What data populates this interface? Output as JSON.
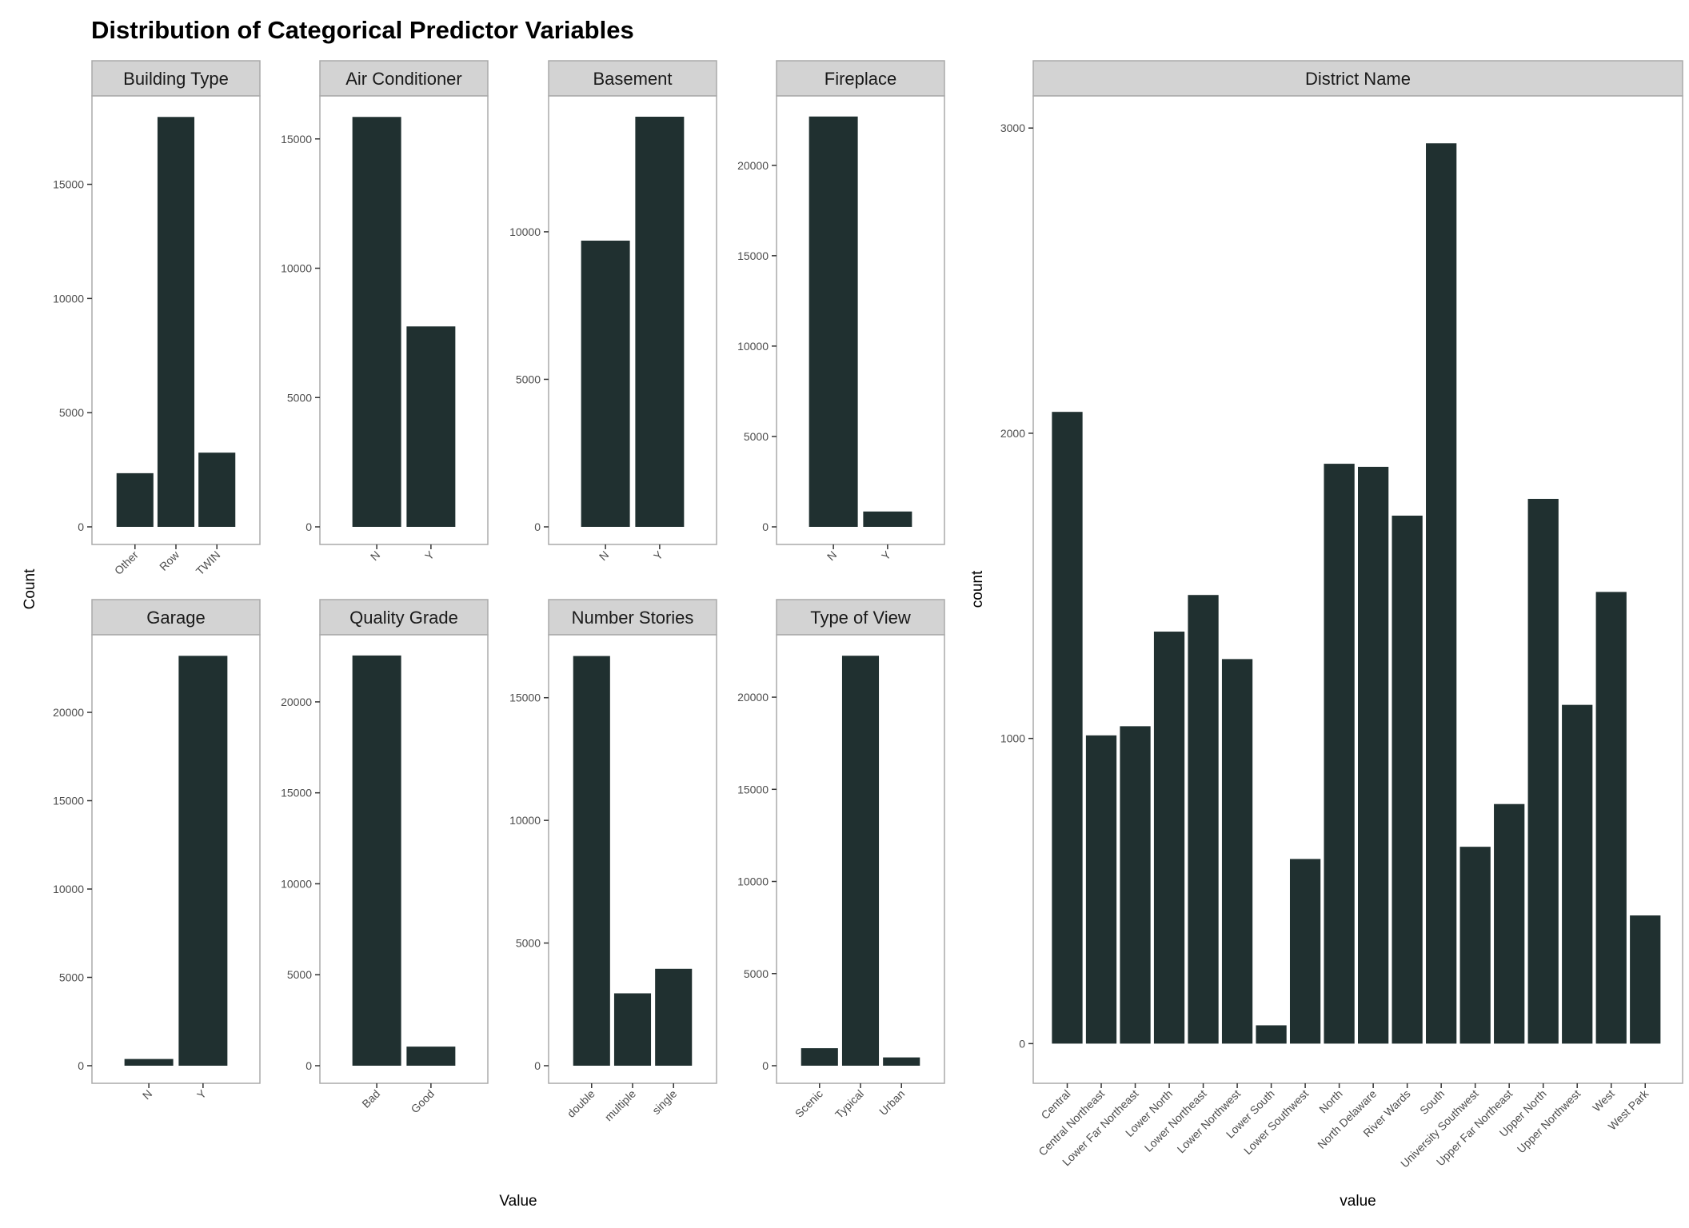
{
  "title": "Distribution of Categorical Predictor Variables",
  "left_panels_xlabel": "Value",
  "left_panels_ylabel": "Count",
  "colors": {
    "bar": "#203030",
    "strip": "#d3d3d3",
    "panel_border": "#aaaaaa"
  },
  "chart_data": [
    {
      "type": "bar",
      "title": "Building Type",
      "categories": [
        "Other",
        "Row",
        "TWIN"
      ],
      "values": [
        2350,
        17950,
        3250
      ],
      "ylim": [
        0,
        18800
      ],
      "yticks": [
        0,
        5000,
        10000,
        15000
      ]
    },
    {
      "type": "bar",
      "title": "Air Conditioner",
      "categories": [
        "N",
        "Y"
      ],
      "values": [
        15850,
        7750
      ],
      "ylim": [
        0,
        16600
      ],
      "yticks": [
        0,
        5000,
        10000,
        15000
      ]
    },
    {
      "type": "bar",
      "title": "Basement",
      "categories": [
        "N",
        "Y"
      ],
      "values": [
        9700,
        13900
      ],
      "ylim": [
        0,
        14550
      ],
      "yticks": [
        0,
        5000,
        10000
      ]
    },
    {
      "type": "bar",
      "title": "Fireplace",
      "categories": [
        "N",
        "Y"
      ],
      "values": [
        22700,
        850
      ],
      "ylim": [
        0,
        23750
      ],
      "yticks": [
        0,
        5000,
        10000,
        15000,
        20000
      ]
    },
    {
      "type": "bar",
      "title": "Garage",
      "categories": [
        "N",
        "Y"
      ],
      "values": [
        380,
        23200
      ],
      "ylim": [
        0,
        24300
      ],
      "yticks": [
        0,
        5000,
        10000,
        15000,
        20000
      ]
    },
    {
      "type": "bar",
      "title": "Quality Grade",
      "categories": [
        "Bad",
        "Good"
      ],
      "values": [
        22550,
        1050
      ],
      "ylim": [
        0,
        23600
      ],
      "yticks": [
        0,
        5000,
        10000,
        15000,
        20000
      ]
    },
    {
      "type": "bar",
      "title": "Number Stories",
      "categories": [
        "double",
        "multiple",
        "single"
      ],
      "values": [
        16700,
        2950,
        3950
      ],
      "ylim": [
        0,
        17500
      ],
      "yticks": [
        0,
        5000,
        10000,
        15000
      ]
    },
    {
      "type": "bar",
      "title": "Type of View",
      "categories": [
        "Scenic",
        "Typical",
        "Urban"
      ],
      "values": [
        950,
        22250,
        450
      ],
      "ylim": [
        0,
        23300
      ],
      "yticks": [
        0,
        5000,
        10000,
        15000,
        20000
      ]
    },
    {
      "type": "bar",
      "title": "District Name",
      "categories": [
        "Central",
        "Central Northeast",
        "Lower Far Northeast",
        "Lower North",
        "Lower Northeast",
        "Lower Northwest",
        "Lower South",
        "Lower Southwest",
        "North",
        "North Delaware",
        "River Wards",
        "South",
        "University Southwest",
        "Upper Far Northeast",
        "Upper North",
        "Upper Northwest",
        "West",
        "West Park"
      ],
      "values": [
        2070,
        1010,
        1040,
        1350,
        1470,
        1260,
        60,
        605,
        1900,
        1890,
        1730,
        2950,
        645,
        785,
        1785,
        1110,
        1480,
        420
      ],
      "ylim": [
        -130,
        3100
      ],
      "yticks": [
        0,
        1000,
        2000,
        3000
      ],
      "xlabel": "value",
      "ylabel": "count"
    }
  ]
}
